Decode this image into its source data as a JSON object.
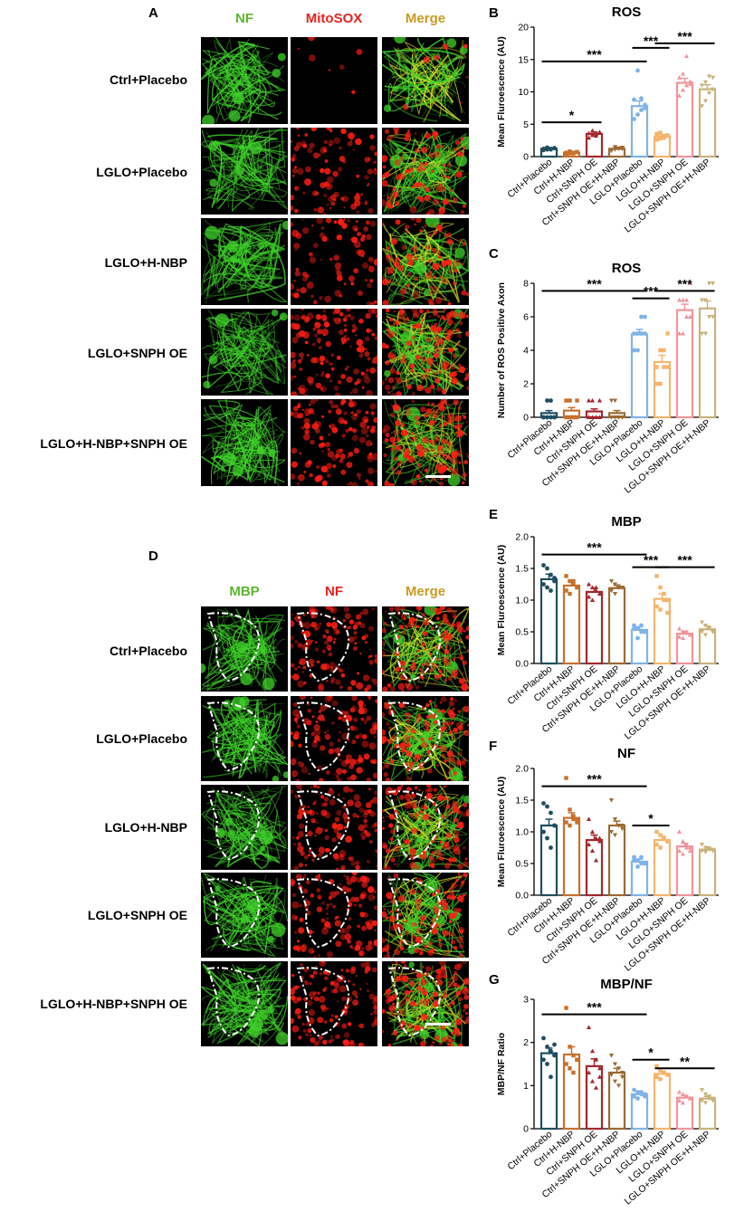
{
  "panel_letters": {
    "A": "A",
    "B": "B",
    "C": "C",
    "D": "D",
    "E": "E",
    "F": "F",
    "G": "G"
  },
  "panel_a": {
    "columns": [
      "NF",
      "MitoSOX",
      "Merge"
    ],
    "column_colors": [
      "#5cb531",
      "#e8221c",
      "#c99a24"
    ],
    "rows": [
      "Ctrl+Placebo",
      "LGLO+Placebo",
      "LGLO+H-NBP",
      "LGLO+SNPH OE",
      "LGLO+H-NBP+SNPH OE"
    ]
  },
  "panel_d": {
    "columns": [
      "MBP",
      "NF",
      "Merge"
    ],
    "column_colors": [
      "#5cb531",
      "#e8221c",
      "#c99a24"
    ],
    "rows": [
      "Ctrl+Placebo",
      "LGLO+Placebo",
      "LGLO+H-NBP",
      "LGLO+SNPH OE",
      "LGLO+H-NBP+SNPH OE"
    ]
  },
  "groups": [
    "Ctrl+Placebo",
    "Ctrl+H-NBP",
    "Ctrl+SNPH OE",
    "Ctrl+SNPH OE+H-NBP",
    "LGLO+Placebo",
    "LGLO+H-NBP",
    "LGLO+SNPH OE",
    "LGLO+SNPH OE+H-NBP"
  ],
  "group_colors": [
    "#1f4e60",
    "#c8702c",
    "#a3272d",
    "#9c6a33",
    "#7fb3e8",
    "#f5b46c",
    "#f2949b",
    "#c9b27a"
  ],
  "chart_data": [
    {
      "id": "B",
      "type": "bar",
      "title": "ROS",
      "ylabel": "Mean Fluroescence (AU)",
      "ylim": [
        0,
        20
      ],
      "yticks": [
        0,
        5,
        10,
        15,
        20
      ],
      "values": [
        1.2,
        0.6,
        3.5,
        1.2,
        7.8,
        3.1,
        11.4,
        10.4
      ],
      "errors": [
        0.15,
        0.1,
        0.3,
        0.2,
        0.8,
        0.3,
        0.7,
        0.7
      ],
      "points": [
        [
          1.0,
          1.1,
          1.2,
          1.3,
          1.2,
          1.4,
          1.1,
          1.3
        ],
        [
          0.4,
          0.5,
          0.6,
          0.7,
          0.6,
          0.8,
          0.5,
          0.7
        ],
        [
          2.9,
          3.3,
          3.5,
          3.8,
          3.6,
          4.0,
          3.2,
          3.7
        ],
        [
          0.9,
          1.1,
          1.2,
          1.4,
          1.0,
          1.5,
          1.3,
          1.2
        ],
        [
          5.8,
          6.5,
          7.2,
          8.0,
          8.8,
          13.3,
          9.0,
          7.5
        ],
        [
          2.6,
          2.8,
          3.0,
          3.2,
          3.5,
          3.7,
          2.9,
          3.3
        ],
        [
          9.4,
          10.3,
          11.0,
          11.6,
          12.2,
          12.8,
          15.5,
          11.2
        ],
        [
          7.8,
          8.6,
          9.8,
          10.4,
          11.0,
          11.5,
          12.4,
          12.2
        ]
      ],
      "brackets": [
        {
          "from": 0,
          "to": 4,
          "y": 14.7,
          "label": "***"
        },
        {
          "from": 4,
          "to": 5,
          "y": 16.8,
          "label": "***"
        },
        {
          "from": 5,
          "to": 7,
          "y": 17.5,
          "label": "***"
        },
        {
          "from": 0,
          "to": 2,
          "y": 5.3,
          "label": "*"
        }
      ]
    },
    {
      "id": "C",
      "type": "bar",
      "title": "ROS",
      "ylabel": "Number of ROS Positive Axon",
      "ylim": [
        0,
        8
      ],
      "yticks": [
        0,
        2,
        4,
        6,
        8
      ],
      "values": [
        0.25,
        0.4,
        0.35,
        0.25,
        4.95,
        3.3,
        6.4,
        6.5
      ],
      "errors": [
        0.15,
        0.18,
        0.15,
        0.15,
        0.3,
        0.4,
        0.35,
        0.45
      ],
      "points": [
        [
          0,
          0,
          0,
          0,
          0,
          1,
          1,
          0
        ],
        [
          0,
          0,
          0,
          1,
          1,
          1,
          0,
          0
        ],
        [
          0,
          0,
          0,
          1,
          1,
          1,
          0,
          0
        ],
        [
          0,
          0,
          0,
          0,
          1,
          1,
          0,
          0
        ],
        [
          4,
          4,
          5,
          5,
          5,
          5,
          6,
          6
        ],
        [
          2,
          2,
          3,
          3,
          3,
          4,
          4,
          5
        ],
        [
          5,
          5,
          6,
          6,
          7,
          7,
          7,
          8
        ],
        [
          5,
          5,
          6,
          6,
          7,
          7,
          8,
          8
        ]
      ],
      "brackets": [
        {
          "from": 0,
          "to": 4,
          "y": 7.55,
          "label": "***"
        },
        {
          "from": 4,
          "to": 5,
          "y": 7.1,
          "label": "***"
        },
        {
          "from": 5,
          "to": 7,
          "y": 7.55,
          "label": "***"
        }
      ]
    },
    {
      "id": "E",
      "type": "bar",
      "title": "MBP",
      "ylabel": "Mean Fluroescence (AU)",
      "ylim": [
        0,
        2.0
      ],
      "yticks": [
        0,
        0.5,
        1.0,
        1.5,
        2.0
      ],
      "values": [
        1.33,
        1.23,
        1.13,
        1.19,
        0.53,
        1.02,
        0.47,
        0.54
      ],
      "errors": [
        0.08,
        0.07,
        0.06,
        0.05,
        0.05,
        0.08,
        0.04,
        0.05
      ],
      "points": [
        [
          1.55,
          1.5,
          1.4,
          1.3,
          1.25,
          1.2,
          1.15,
          1.35
        ],
        [
          1.38,
          1.3,
          1.25,
          1.2,
          1.15,
          1.1,
          1.3,
          1.2
        ],
        [
          1.25,
          1.2,
          1.15,
          1.1,
          1.05,
          1.0,
          1.2,
          1.1
        ],
        [
          1.3,
          1.25,
          1.2,
          1.2,
          1.15,
          1.1,
          1.2,
          1.2
        ],
        [
          0.6,
          0.55,
          0.5,
          0.5,
          0.55,
          0.4,
          0.6,
          0.5
        ],
        [
          1.38,
          1.2,
          1.1,
          1.0,
          0.9,
          0.85,
          1.0,
          0.8
        ],
        [
          0.55,
          0.5,
          0.48,
          0.45,
          0.42,
          0.4,
          0.5,
          0.45
        ],
        [
          0.65,
          0.6,
          0.55,
          0.5,
          0.5,
          0.45,
          0.55,
          0.5
        ]
      ],
      "brackets": [
        {
          "from": 0,
          "to": 4,
          "y": 1.72,
          "label": "***"
        },
        {
          "from": 4,
          "to": 5,
          "y": 1.52,
          "label": "***"
        },
        {
          "from": 5,
          "to": 7,
          "y": 1.52,
          "label": "***"
        }
      ]
    },
    {
      "id": "F",
      "type": "bar",
      "title": "NF",
      "ylabel": "Mean Fluroescence (AU)",
      "ylim": [
        0,
        2.0
      ],
      "yticks": [
        0,
        0.5,
        1.0,
        1.5,
        2.0
      ],
      "values": [
        1.1,
        1.22,
        0.87,
        1.1,
        0.53,
        0.87,
        0.77,
        0.72
      ],
      "errors": [
        0.1,
        0.08,
        0.08,
        0.07,
        0.04,
        0.06,
        0.05,
        0.04
      ],
      "points": [
        [
          1.45,
          1.4,
          1.3,
          1.1,
          1.0,
          0.9,
          0.75,
          1.1
        ],
        [
          1.85,
          1.35,
          1.25,
          1.2,
          1.15,
          1.1,
          1.2,
          1.15
        ],
        [
          1.2,
          1.0,
          0.9,
          0.85,
          0.8,
          0.7,
          0.55,
          0.9
        ],
        [
          1.5,
          1.2,
          1.1,
          1.05,
          1.0,
          0.95,
          1.1,
          1.1
        ],
        [
          0.6,
          0.55,
          0.5,
          0.5,
          0.55,
          0.45,
          0.6,
          0.5
        ],
        [
          1.0,
          0.95,
          0.9,
          0.85,
          0.8,
          0.75,
          0.9,
          0.85
        ],
        [
          1.0,
          0.85,
          0.8,
          0.75,
          0.7,
          0.65,
          0.75,
          0.7
        ],
        [
          0.8,
          0.75,
          0.72,
          0.7,
          0.7,
          0.68,
          0.74,
          0.72
        ]
      ],
      "brackets": [
        {
          "from": 0,
          "to": 4,
          "y": 1.72,
          "label": "***"
        },
        {
          "from": 4,
          "to": 5,
          "y": 1.1,
          "label": "*"
        }
      ]
    },
    {
      "id": "G",
      "type": "bar",
      "title": "MBP/NF",
      "ylabel": "MBP/NF Ratio",
      "ylim": [
        0,
        3
      ],
      "yticks": [
        0,
        1,
        2,
        3
      ],
      "values": [
        1.75,
        1.72,
        1.45,
        1.3,
        0.8,
        1.27,
        0.72,
        0.7
      ],
      "errors": [
        0.12,
        0.18,
        0.17,
        0.1,
        0.05,
        0.06,
        0.05,
        0.05
      ],
      "points": [
        [
          2.1,
          1.9,
          1.8,
          1.7,
          1.6,
          1.5,
          1.2,
          1.95
        ],
        [
          2.8,
          1.9,
          1.7,
          1.6,
          1.5,
          1.4,
          1.3,
          1.6
        ],
        [
          2.35,
          1.8,
          1.6,
          1.4,
          1.3,
          1.1,
          0.95,
          1.2
        ],
        [
          1.7,
          1.5,
          1.4,
          1.3,
          1.25,
          1.1,
          1.0,
          1.2
        ],
        [
          0.9,
          0.85,
          0.8,
          0.75,
          0.75,
          0.7,
          0.85,
          0.8
        ],
        [
          1.45,
          1.35,
          1.3,
          1.25,
          1.2,
          1.15,
          1.3,
          1.25
        ],
        [
          0.85,
          0.8,
          0.75,
          0.7,
          0.65,
          0.6,
          0.75,
          0.7
        ],
        [
          0.9,
          0.8,
          0.75,
          0.7,
          0.65,
          0.6,
          0.7,
          0.65
        ]
      ],
      "brackets": [
        {
          "from": 0,
          "to": 4,
          "y": 2.65,
          "label": "***"
        },
        {
          "from": 4,
          "to": 5,
          "y": 1.6,
          "label": "*"
        },
        {
          "from": 5,
          "to": 7,
          "y": 1.4,
          "label": "**"
        }
      ]
    }
  ]
}
